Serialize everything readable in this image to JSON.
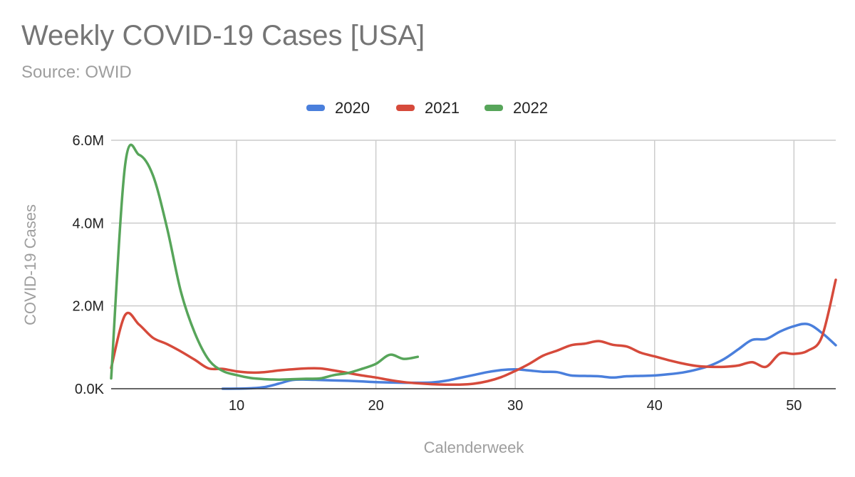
{
  "chart_data": {
    "type": "line",
    "title": "Weekly COVID-19 Cases [USA]",
    "subtitle": "Source: OWID",
    "xlabel": "Calenderweek",
    "ylabel": "COVID-19 Cases",
    "xlim": [
      1,
      53
    ],
    "ylim": [
      0,
      6000000
    ],
    "x_ticks": [
      10,
      20,
      30,
      40,
      50
    ],
    "y_ticks": [
      {
        "value": 0,
        "label": "0.0K"
      },
      {
        "value": 2000000,
        "label": "2.0M"
      },
      {
        "value": 4000000,
        "label": "4.0M"
      },
      {
        "value": 6000000,
        "label": "6.0M"
      }
    ],
    "grid": true,
    "legend_position": "top",
    "series": [
      {
        "name": "2020",
        "color": "#4a7fdc",
        "x": [
          9,
          10,
          11,
          12,
          13,
          14,
          15,
          16,
          17,
          18,
          19,
          20,
          21,
          22,
          23,
          24,
          25,
          26,
          27,
          28,
          29,
          30,
          31,
          32,
          33,
          34,
          35,
          36,
          37,
          38,
          39,
          40,
          41,
          42,
          43,
          44,
          45,
          46,
          47,
          48,
          49,
          50,
          51,
          52,
          53
        ],
        "y": [
          0,
          2000,
          10000,
          40000,
          120000,
          210000,
          220000,
          210000,
          200000,
          190000,
          175000,
          160000,
          150000,
          145000,
          145000,
          150000,
          190000,
          260000,
          330000,
          400000,
          450000,
          470000,
          440000,
          410000,
          400000,
          320000,
          310000,
          300000,
          270000,
          300000,
          310000,
          320000,
          350000,
          390000,
          460000,
          560000,
          720000,
          950000,
          1180000,
          1200000,
          1380000,
          1510000,
          1560000,
          1350000,
          1050000
        ]
      },
      {
        "name": "2021",
        "color": "#d64a3b",
        "x": [
          1,
          2,
          3,
          4,
          5,
          6,
          7,
          8,
          9,
          10,
          11,
          12,
          13,
          14,
          15,
          16,
          17,
          18,
          19,
          20,
          21,
          22,
          23,
          24,
          25,
          26,
          27,
          28,
          29,
          30,
          31,
          32,
          33,
          34,
          35,
          36,
          37,
          38,
          39,
          40,
          41,
          42,
          43,
          44,
          45,
          46,
          47,
          48,
          49,
          50,
          51,
          52,
          53
        ],
        "y": [
          500000,
          1780000,
          1550000,
          1230000,
          1080000,
          900000,
          700000,
          490000,
          480000,
          420000,
          390000,
          400000,
          440000,
          470000,
          490000,
          490000,
          440000,
          380000,
          320000,
          270000,
          210000,
          160000,
          130000,
          110000,
          100000,
          100000,
          120000,
          180000,
          280000,
          430000,
          600000,
          800000,
          920000,
          1050000,
          1090000,
          1150000,
          1060000,
          1020000,
          870000,
          780000,
          690000,
          610000,
          550000,
          530000,
          530000,
          560000,
          640000,
          530000,
          850000,
          840000,
          920000,
          1250000,
          2630000
        ]
      },
      {
        "name": "2022",
        "color": "#57a55a",
        "x": [
          1,
          2,
          3,
          4,
          5,
          6,
          7,
          8,
          9,
          10,
          11,
          12,
          13,
          14,
          15,
          16,
          17,
          18,
          19,
          20,
          21,
          22,
          23
        ],
        "y": [
          250000,
          5400000,
          5650000,
          5150000,
          3900000,
          2350000,
          1350000,
          700000,
          430000,
          330000,
          260000,
          230000,
          220000,
          230000,
          240000,
          250000,
          330000,
          380000,
          480000,
          600000,
          820000,
          720000,
          770000
        ]
      }
    ]
  }
}
